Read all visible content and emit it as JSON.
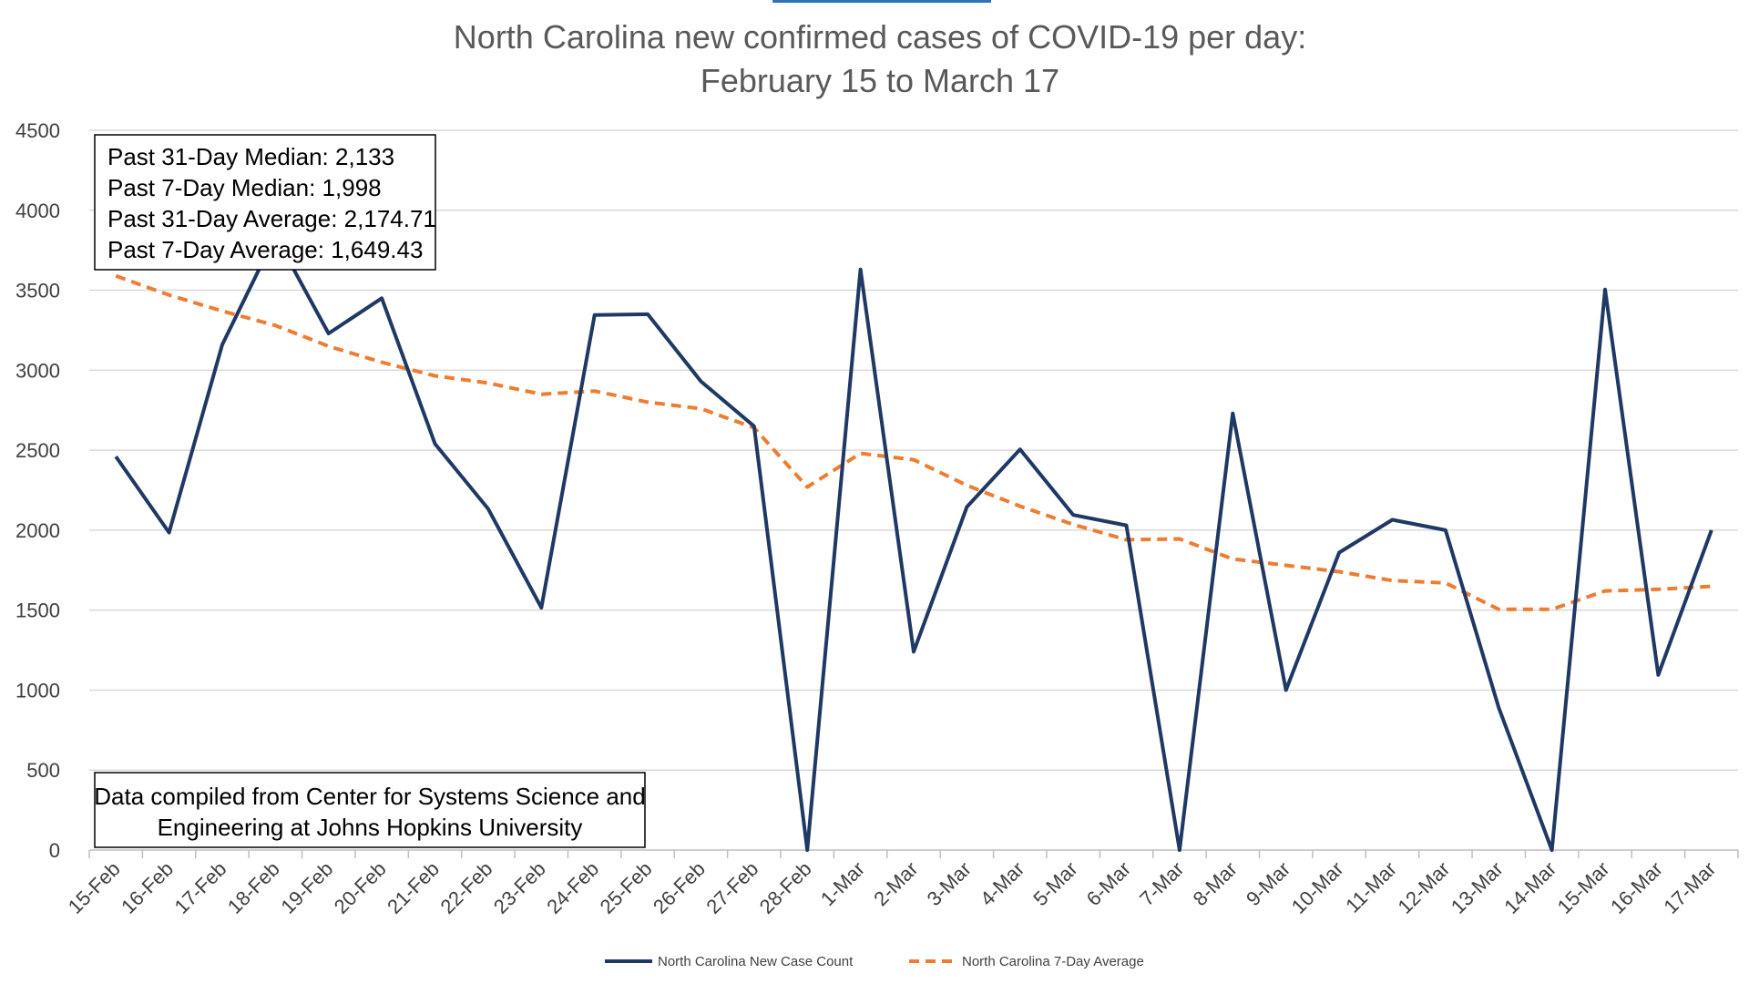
{
  "colors": {
    "new_case_line": "#1f3864",
    "avg_line": "#ed7d31",
    "grid": "#d9d9d9",
    "title": "#595959",
    "tick_text": "#404040"
  },
  "chart_data": {
    "type": "line",
    "title_line1": "North Carolina new confirmed cases of COVID-19 per day:",
    "title_line2": "February 15 to March 17",
    "xlabel": "",
    "ylabel": "",
    "ylim": [
      0,
      4500
    ],
    "yticks": [
      0,
      500,
      1000,
      1500,
      2000,
      2500,
      3000,
      3500,
      4000,
      4500
    ],
    "grid": true,
    "legend_position": "bottom",
    "categories": [
      "15-Feb",
      "16-Feb",
      "17-Feb",
      "18-Feb",
      "19-Feb",
      "20-Feb",
      "21-Feb",
      "22-Feb",
      "23-Feb",
      "24-Feb",
      "25-Feb",
      "26-Feb",
      "27-Feb",
      "28-Feb",
      "1-Mar",
      "2-Mar",
      "3-Mar",
      "4-Mar",
      "5-Mar",
      "6-Mar",
      "7-Mar",
      "8-Mar",
      "9-Mar",
      "10-Mar",
      "11-Mar",
      "12-Mar",
      "13-Mar",
      "14-Mar",
      "15-Mar",
      "16-Mar",
      "17-Mar"
    ],
    "series": [
      {
        "name": "North Carolina New Case Count",
        "style": "solid",
        "values": [
          2460,
          1985,
          3160,
          3840,
          3230,
          3450,
          2540,
          2133,
          1515,
          3345,
          3350,
          2930,
          2650,
          0,
          3630,
          1240,
          2145,
          2505,
          2095,
          2030,
          0,
          2730,
          1000,
          1860,
          2065,
          2000,
          890,
          0,
          3505,
          1095,
          2000
        ]
      },
      {
        "name": "North Carolina 7-Day Average",
        "style": "dashed",
        "values": [
          3590,
          3470,
          3370,
          3280,
          3150,
          3050,
          2965,
          2920,
          2850,
          2870,
          2800,
          2760,
          2640,
          2270,
          2480,
          2440,
          2280,
          2150,
          2035,
          1940,
          1945,
          1820,
          1780,
          1740,
          1685,
          1670,
          1505,
          1505,
          1620,
          1630,
          1649
        ]
      }
    ]
  },
  "stats_box": {
    "line1": "Past 31-Day Median: 2,133",
    "line2": "Past 7-Day Median: 1,998",
    "line3": "Past 31-Day Average: 2,174.71",
    "line4": "Past 7-Day Average: 1,649.43"
  },
  "source_box": {
    "line1": "Data compiled from Center for Systems Science and",
    "line2": "Engineering at Johns Hopkins University"
  }
}
